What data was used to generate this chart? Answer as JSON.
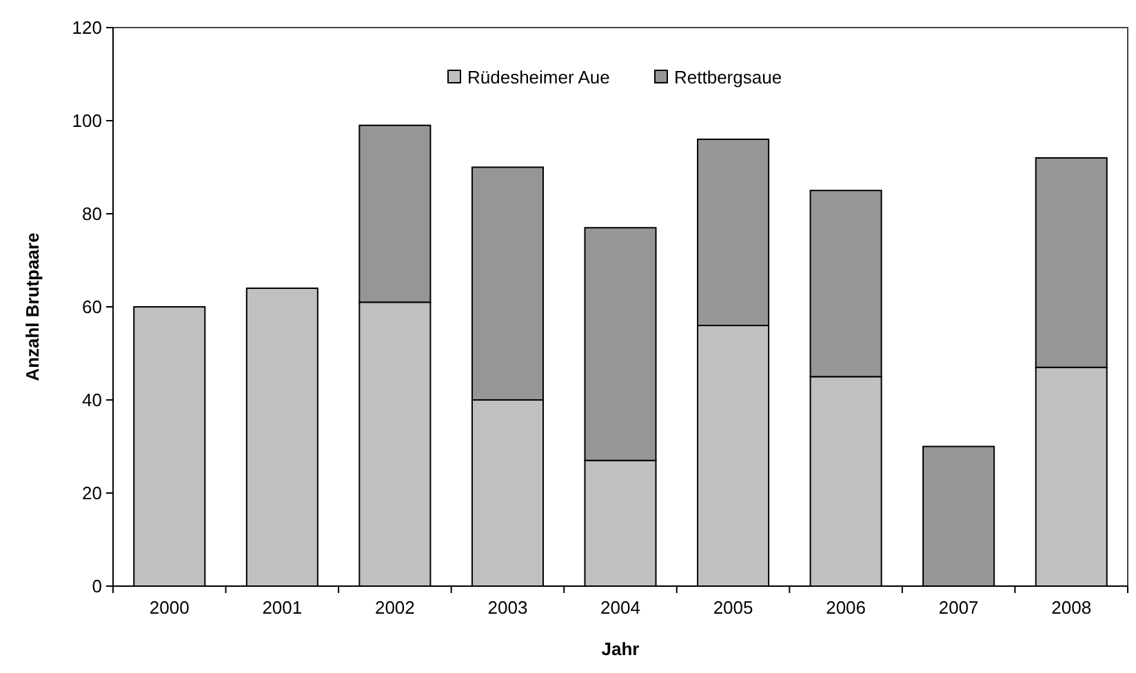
{
  "chart_data": {
    "type": "bar",
    "stacked": true,
    "xlabel": "Jahr",
    "ylabel": "Anzahl Brutpaare",
    "categories": [
      "2000",
      "2001",
      "2002",
      "2003",
      "2004",
      "2005",
      "2006",
      "2007",
      "2008"
    ],
    "series": [
      {
        "name": "Rüdesheimer Aue",
        "color": "#c0c0c0",
        "values": [
          60,
          64,
          61,
          40,
          27,
          56,
          45,
          null,
          47
        ]
      },
      {
        "name": "Rettbergsaue",
        "color": "#969696",
        "values": [
          null,
          null,
          38,
          50,
          50,
          40,
          40,
          30,
          45
        ]
      }
    ],
    "ylim": [
      0,
      120
    ],
    "yticks": [
      0,
      20,
      40,
      60,
      80,
      100,
      120
    ],
    "grid": false,
    "legend": "top"
  }
}
